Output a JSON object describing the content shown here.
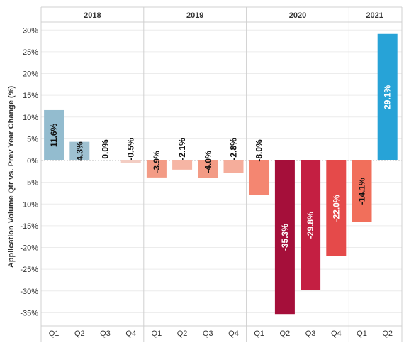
{
  "chart_data": {
    "type": "bar",
    "ylabel": "Application Volume Qtr vs. Prev Year Change (%)",
    "ylim": [
      -37.5,
      32
    ],
    "yticks": [
      30,
      25,
      20,
      15,
      10,
      5,
      0,
      -5,
      -10,
      -15,
      -20,
      -25,
      -30,
      -35
    ],
    "ytick_labels": [
      "30%",
      "25%",
      "20%",
      "15%",
      "10%",
      "5%",
      "0%",
      "-5%",
      "-10%",
      "-15%",
      "-20%",
      "-25%",
      "-30%",
      "-35%"
    ],
    "grid": "horizontal",
    "groups": [
      {
        "name": "2018",
        "quarters": [
          "Q1",
          "Q2",
          "Q3",
          "Q4"
        ],
        "values": [
          11.6,
          4.3,
          0.0,
          -0.5
        ],
        "labels": [
          "11.6%",
          "4.3%",
          "0.0%",
          "-0.5%"
        ],
        "colors": [
          "#93bccf",
          "#9fc1d1",
          "#c7d9e3",
          "#f3cdc3"
        ]
      },
      {
        "name": "2019",
        "quarters": [
          "Q1",
          "Q2",
          "Q3",
          "Q4"
        ],
        "values": [
          -3.9,
          -2.1,
          -4.0,
          -2.8
        ],
        "labels": [
          "-3.9%",
          "-2.1%",
          "-4.0%",
          "-2.8%"
        ],
        "colors": [
          "#f39b85",
          "#f6b5a4",
          "#f39b85",
          "#f5ad9b"
        ]
      },
      {
        "name": "2020",
        "quarters": [
          "Q1",
          "Q2",
          "Q3",
          "Q4"
        ],
        "values": [
          -8.0,
          -35.3,
          -29.8,
          -22.0
        ],
        "labels": [
          "-8.0%",
          "-35.3%",
          "-29.8%",
          "-22.0%"
        ],
        "colors": [
          "#f48671",
          "#a50f3a",
          "#c41f42",
          "#e54a4a"
        ]
      },
      {
        "name": "2021",
        "quarters": [
          "Q1",
          "Q2"
        ],
        "values": [
          -14.1,
          29.1
        ],
        "labels": [
          "-14.1%",
          "29.1%"
        ],
        "colors": [
          "#f16f5b",
          "#27a3d7"
        ]
      }
    ]
  }
}
